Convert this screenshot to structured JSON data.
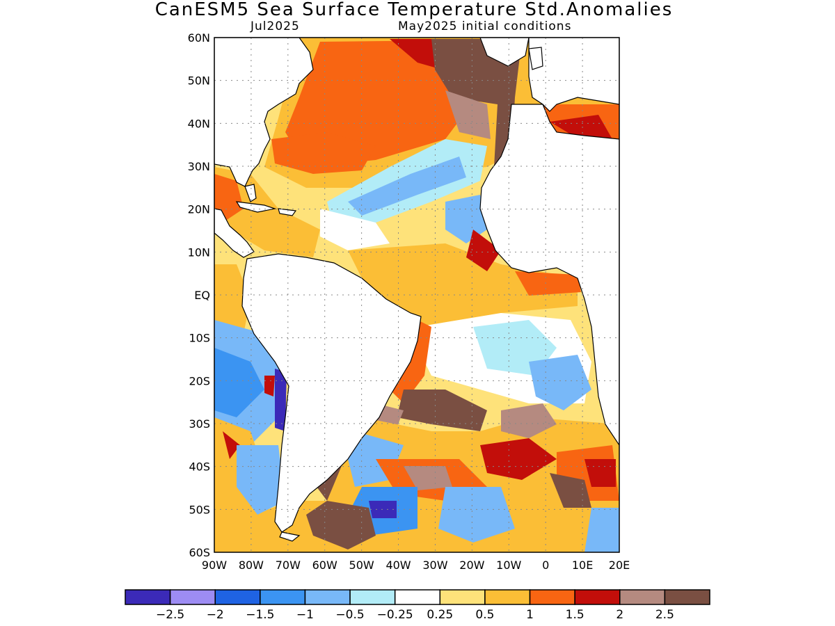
{
  "header": {
    "title": "CanESM5 Sea Surface Temperature Std.Anomalies",
    "valid_month": "Jul2025",
    "init": "May2025 initial conditions"
  },
  "map": {
    "lat_labels": [
      "60N",
      "50N",
      "40N",
      "30N",
      "20N",
      "10N",
      "EQ",
      "10S",
      "20S",
      "30S",
      "40S",
      "50S",
      "60S"
    ],
    "lon_labels": [
      "90W",
      "80W",
      "70W",
      "60W",
      "50W",
      "40W",
      "30W",
      "20W",
      "10W",
      "0",
      "10E",
      "20E"
    ]
  },
  "colorbar": {
    "colors": [
      "#3b2ab8",
      "#9d8cf3",
      "#1f63e3",
      "#3b94f2",
      "#78b8f8",
      "#b2ecf7",
      "#ffffff",
      "#fee27a",
      "#fbbe36",
      "#f86512",
      "#c20e0a",
      "#b58a80",
      "#7a4f42"
    ],
    "labels": [
      "−2.5",
      "−2",
      "−1.5",
      "−1",
      "−0.5",
      "−0.25",
      "0.25",
      "0.5",
      "1",
      "1.5",
      "2",
      "2.5"
    ]
  }
}
